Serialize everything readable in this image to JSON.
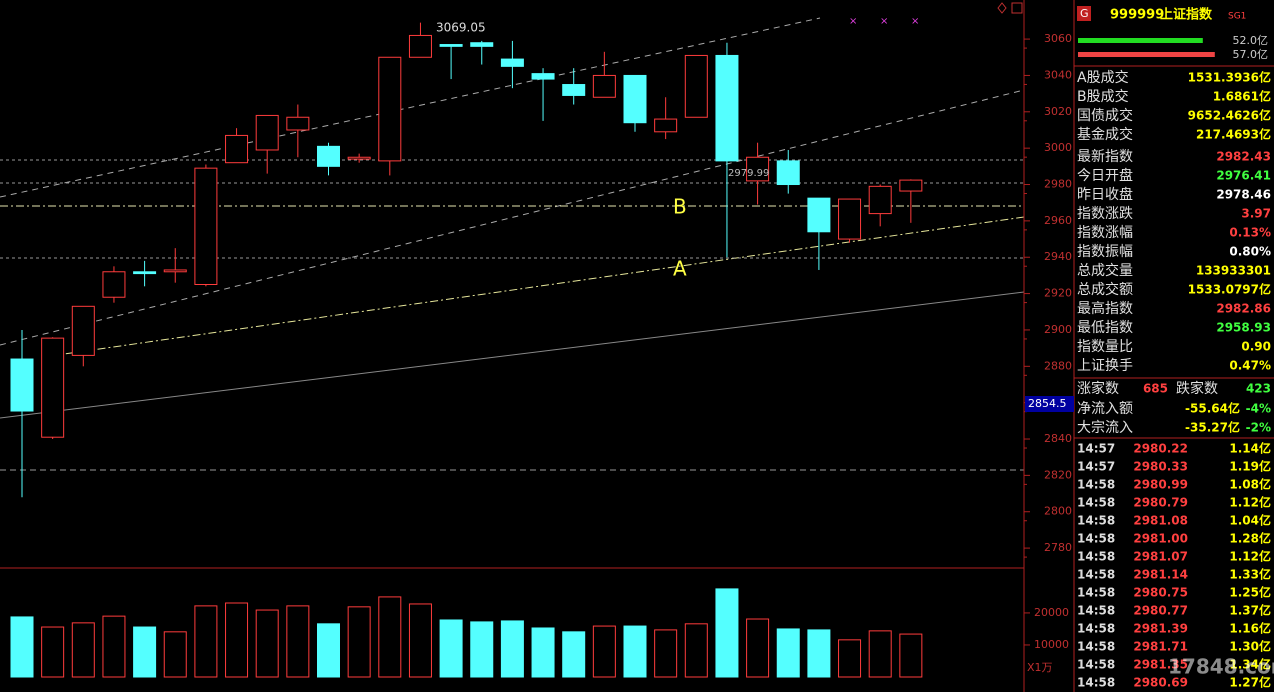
{
  "chart_data": {
    "type": "candlestick",
    "ylim": [
      2770.7,
      3081.5
    ],
    "yticks": [
      3060,
      3040,
      3020,
      3000,
      2980,
      2960,
      2940,
      2920,
      2900,
      2880,
      2860,
      2840,
      2820,
      2800,
      2780
    ],
    "cursor_label": "2854.5",
    "vol_ylim": [
      0,
      33400
    ],
    "vol_ticks": [
      20000,
      10000
    ],
    "vol_unit": "X1万",
    "annotations": [
      "3069.05",
      "2979.99",
      "B",
      "A"
    ],
    "up_color": "#ff3c3c",
    "down_color": "#54ffff",
    "candles": [
      {
        "open": 2884,
        "high": 2900,
        "low": 2808,
        "close": 2855.4
      },
      {
        "open": 2841,
        "high": 2896,
        "low": 2840,
        "close": 2895.5
      },
      {
        "open": 2886,
        "high": 2913,
        "low": 2880,
        "close": 2913
      },
      {
        "open": 2918,
        "high": 2935,
        "low": 2915,
        "close": 2932
      },
      {
        "open": 2932,
        "high": 2938,
        "low": 2924,
        "close": 2931
      },
      {
        "open": 2932,
        "high": 2945,
        "low": 2926,
        "close": 2933
      },
      {
        "open": 2925,
        "high": 2991,
        "low": 2924,
        "close": 2989
      },
      {
        "open": 2992,
        "high": 3011,
        "low": 2992,
        "close": 3007
      },
      {
        "open": 2999,
        "high": 3018,
        "low": 2986,
        "close": 3018
      },
      {
        "open": 3010,
        "high": 3024,
        "low": 2995,
        "close": 3017
      },
      {
        "open": 3001,
        "high": 3003,
        "low": 2985,
        "close": 2990
      },
      {
        "open": 2994,
        "high": 2997,
        "low": 2992,
        "close": 2995
      },
      {
        "open": 2993,
        "high": 3050,
        "low": 2985,
        "close": 3050
      },
      {
        "open": 3050,
        "high": 3069.05,
        "low": 3050,
        "close": 3062
      },
      {
        "open": 3057,
        "high": 3057,
        "low": 3038,
        "close": 3056
      },
      {
        "open": 3058,
        "high": 3059,
        "low": 3046,
        "close": 3056
      },
      {
        "open": 3049,
        "high": 3059,
        "low": 3033,
        "close": 3045
      },
      {
        "open": 3041,
        "high": 3044,
        "low": 3015,
        "close": 3038
      },
      {
        "open": 3035,
        "high": 3044,
        "low": 3024,
        "close": 3029
      },
      {
        "open": 3028,
        "high": 3053,
        "low": 3028,
        "close": 3040
      },
      {
        "open": 3040,
        "high": 3040,
        "low": 3009,
        "close": 3014
      },
      {
        "open": 3009,
        "high": 3028,
        "low": 3005,
        "close": 3016
      },
      {
        "open": 3017,
        "high": 3051,
        "low": 3017,
        "close": 3051
      },
      {
        "open": 3051,
        "high": 3058,
        "low": 2940,
        "close": 2993
      },
      {
        "open": 2982,
        "high": 3003,
        "low": 2969,
        "close": 2995
      },
      {
        "open": 2993,
        "high": 2999,
        "low": 2975,
        "close": 2980
      },
      {
        "open": 2972.5,
        "high": 2972.5,
        "low": 2933,
        "close": 2954
      },
      {
        "open": 2950,
        "high": 2972,
        "low": 2948,
        "close": 2972
      },
      {
        "open": 2964,
        "high": 2980,
        "low": 2957,
        "close": 2979
      },
      {
        "open": 2976.41,
        "high": 2982.86,
        "low": 2958.93,
        "close": 2982.43
      }
    ],
    "volumes": [
      18750,
      15600,
      16900,
      19000,
      15600,
      14100,
      22200,
      23100,
      20900,
      22200,
      16600,
      21900,
      25000,
      22800,
      17800,
      17200,
      17500,
      15300,
      14100,
      15900,
      15900,
      14700,
      16600,
      27500,
      18100,
      15000,
      14700,
      11600,
      14400,
      13400
    ]
  },
  "panel": {
    "badge": "G",
    "code": "999999",
    "name": "上证指数",
    "tag": "SG1",
    "flows": [
      {
        "value": 52.0,
        "label": "52.0亿",
        "color": "#22dd22"
      },
      {
        "value": 57.0,
        "label": "57.0亿",
        "color": "#ee4444"
      }
    ],
    "rows": [
      {
        "label": "A股成交",
        "value": "1531.3936亿",
        "color": "#ffff00"
      },
      {
        "label": "B股成交",
        "value": "1.6861亿",
        "color": "#ffff00"
      },
      {
        "label": "国债成交",
        "value": "9652.4626亿",
        "color": "#ffff00"
      },
      {
        "label": "基金成交",
        "value": "217.4693亿",
        "color": "#ffff00"
      },
      {
        "label": "最新指数",
        "value": "2982.43",
        "color": "#ff4040"
      },
      {
        "label": "今日开盘",
        "value": "2976.41",
        "color": "#40ff40"
      },
      {
        "label": "昨日收盘",
        "value": "2978.46",
        "color": "#ffffff"
      },
      {
        "label": "指数涨跌",
        "value": "3.97",
        "color": "#ff4040"
      },
      {
        "label": "指数涨幅",
        "value": "0.13%",
        "color": "#ff4040"
      },
      {
        "label": "指数振幅",
        "value": "0.80%",
        "color": "#ffffff"
      },
      {
        "label": "总成交量",
        "value": "133933301",
        "color": "#ffff00"
      },
      {
        "label": "总成交额",
        "value": "1533.0797亿",
        "color": "#ffff00"
      },
      {
        "label": "最高指数",
        "value": "2982.86",
        "color": "#ff4040"
      },
      {
        "label": "最低指数",
        "value": "2958.93",
        "color": "#40ff40"
      },
      {
        "label": "指数量比",
        "value": "0.90",
        "color": "#ffff00"
      },
      {
        "label": "上证换手",
        "value": "0.47%",
        "color": "#ffff00"
      }
    ],
    "breadth": {
      "up_label": "涨家数",
      "up": "685",
      "down_label": "跌家数",
      "down": "423"
    },
    "flows2": [
      {
        "label": "净流入额",
        "value": "-55.64亿",
        "pct": "-4%"
      },
      {
        "label": "大宗流入",
        "value": "-35.27亿",
        "pct": "-2%"
      }
    ],
    "ticks": [
      [
        "14:57",
        "2980.22",
        "1.14亿"
      ],
      [
        "14:57",
        "2980.33",
        "1.19亿"
      ],
      [
        "14:58",
        "2980.99",
        "1.08亿"
      ],
      [
        "14:58",
        "2980.79",
        "1.12亿"
      ],
      [
        "14:58",
        "2981.08",
        "1.04亿"
      ],
      [
        "14:58",
        "2981.00",
        "1.28亿"
      ],
      [
        "14:58",
        "2981.07",
        "1.12亿"
      ],
      [
        "14:58",
        "2981.14",
        "1.33亿"
      ],
      [
        "14:58",
        "2980.75",
        "1.25亿"
      ],
      [
        "14:58",
        "2980.77",
        "1.37亿"
      ],
      [
        "14:58",
        "2981.39",
        "1.16亿"
      ],
      [
        "14:58",
        "2981.71",
        "1.30亿"
      ],
      [
        "14:58",
        "2981.35",
        "1.34亿"
      ],
      [
        "14:58",
        "2980.69",
        "1.27亿"
      ]
    ],
    "watermark": "17848.com"
  }
}
